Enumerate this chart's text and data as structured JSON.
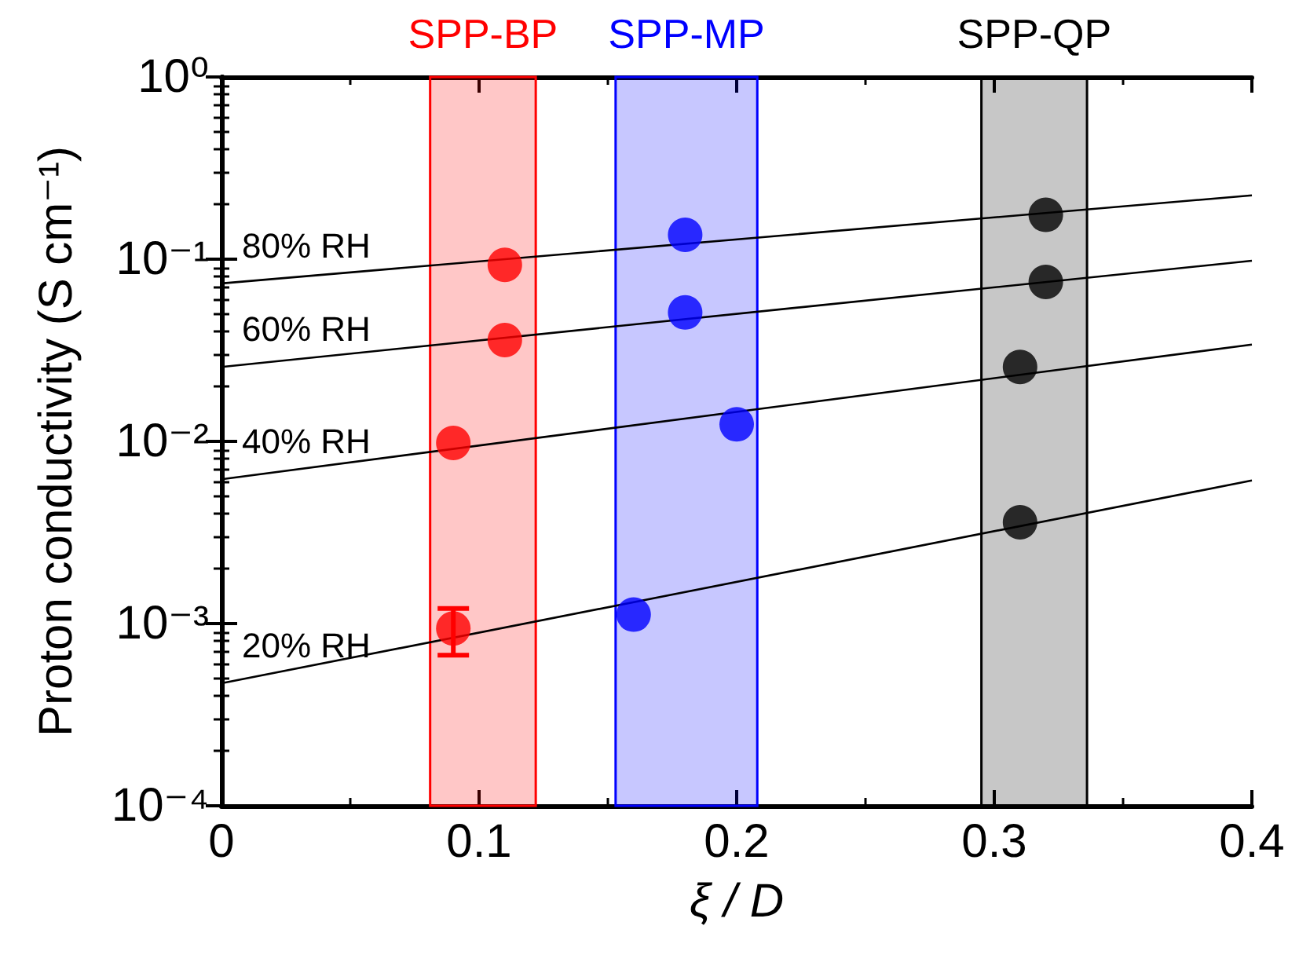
{
  "chart_data": {
    "type": "scatter",
    "xlabel": "ξ / D",
    "ylabel": "Proton conductivity (S cm⁻¹)",
    "xlim": [
      0,
      0.4
    ],
    "xticks": [
      0,
      0.1,
      0.2,
      0.3,
      0.4
    ],
    "ylim": [
      0.0001,
      1
    ],
    "yticks": [
      {
        "value": 0.0001,
        "label": "10⁻⁴"
      },
      {
        "value": 0.001,
        "label": "10⁻³"
      },
      {
        "value": 0.01,
        "label": "10⁻²"
      },
      {
        "value": 0.1,
        "label": "10⁻¹"
      },
      {
        "value": 1,
        "label": "10⁰"
      }
    ],
    "log": "y",
    "grid": false,
    "marker": "circle",
    "bands": [
      {
        "axis": "x",
        "from": 0.081,
        "to": 0.122,
        "label": "SPP-BP",
        "color": "#ff0000"
      },
      {
        "axis": "x",
        "from": 0.153,
        "to": 0.208,
        "label": "SPP-MP",
        "color": "#0000ff"
      },
      {
        "axis": "x",
        "from": 0.295,
        "to": 0.336,
        "label": "SPP-QP",
        "color": "#000000"
      }
    ],
    "series": [
      {
        "color": "#ff0000",
        "x": [
          0.11,
          0.11,
          0.09,
          0.09
        ],
        "values": [
          0.093,
          0.036,
          0.0098,
          0.00094
        ],
        "errors": [
          null,
          null,
          null,
          [
            0.00067,
            0.00121
          ]
        ]
      },
      {
        "color": "#0000ff",
        "x": [
          0.18,
          0.18,
          0.2,
          0.16
        ],
        "values": [
          0.136,
          0.051,
          0.0124,
          0.00112
        ]
      },
      {
        "color": "#000000",
        "x": [
          0.32,
          0.32,
          0.31,
          0.31
        ],
        "values": [
          0.175,
          0.075,
          0.0256,
          0.0036
        ]
      },
      {
        "type": "line",
        "name": "80% RH",
        "color": "#000000",
        "x": [
          0,
          0.4
        ],
        "values": [
          0.0736,
          0.224
        ],
        "marker": "none"
      },
      {
        "type": "line",
        "name": "60% RH",
        "color": "#000000",
        "x": [
          0,
          0.4
        ],
        "values": [
          0.0256,
          0.098
        ],
        "marker": "none"
      },
      {
        "type": "line",
        "name": "40% RH",
        "color": "#000000",
        "x": [
          0,
          0.4
        ],
        "values": [
          0.0062,
          0.034
        ],
        "marker": "none"
      },
      {
        "type": "line",
        "name": "20% RH",
        "color": "#000000",
        "x": [
          0,
          0.4
        ],
        "values": [
          0.00047,
          0.0061
        ],
        "marker": "none"
      }
    ]
  }
}
